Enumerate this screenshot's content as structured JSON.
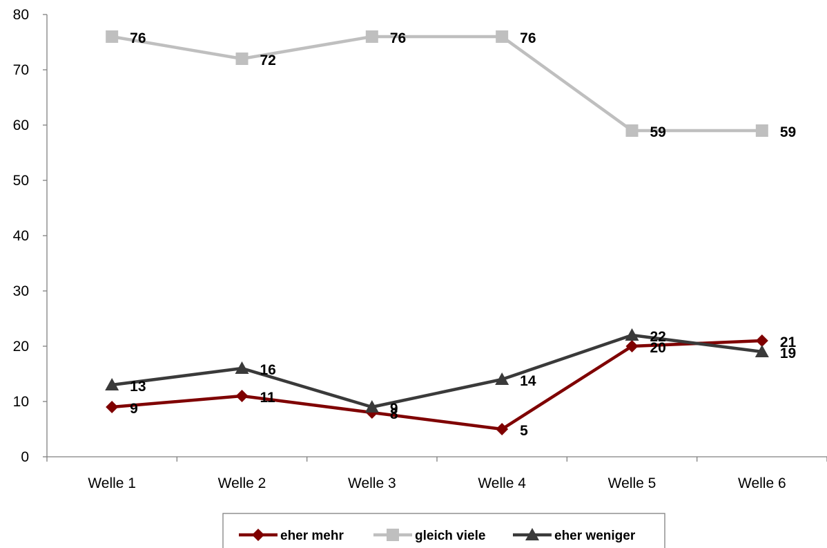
{
  "chart_data": {
    "type": "line",
    "categories": [
      "Welle 1",
      "Welle 2",
      "Welle 3",
      "Welle 4",
      "Welle 5",
      "Welle 6"
    ],
    "ylim": [
      0,
      80
    ],
    "yticks": [
      0,
      10,
      20,
      30,
      40,
      50,
      60,
      70,
      80
    ],
    "grid": false,
    "legend_position": "bottom",
    "series": [
      {
        "name": "eher mehr",
        "values": [
          9,
          11,
          8,
          5,
          20,
          21
        ],
        "color": "#7f0000",
        "marker": "diamond"
      },
      {
        "name": "gleich viele",
        "values": [
          76,
          72,
          76,
          76,
          59,
          59
        ],
        "color": "#bfbfbf",
        "marker": "square"
      },
      {
        "name": "eher weniger",
        "values": [
          13,
          16,
          9,
          14,
          22,
          19
        ],
        "color": "#3a3a3a",
        "marker": "triangle"
      }
    ]
  }
}
